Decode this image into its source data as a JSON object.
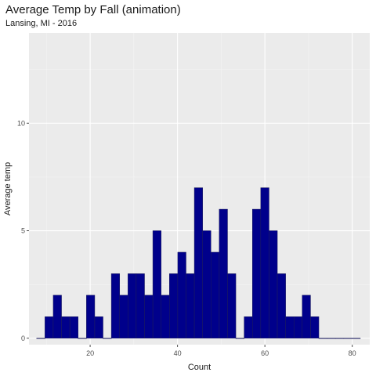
{
  "chart_data": {
    "type": "bar",
    "title": "Average Temp by Fall (animation)",
    "subtitle": "Lansing, MI - 2016",
    "xlabel": "Count",
    "ylabel": "Average temp",
    "xlim": [
      6,
      84
    ],
    "ylim": [
      -0.3,
      14.2
    ],
    "xticks": [
      20,
      40,
      60,
      80
    ],
    "yticks": [
      0,
      5,
      10
    ],
    "bin_width": 1.9,
    "bins": [
      {
        "x": 8.7,
        "count": 0
      },
      {
        "x": 10.6,
        "count": 1
      },
      {
        "x": 12.5,
        "count": 2
      },
      {
        "x": 14.4,
        "count": 1
      },
      {
        "x": 16.3,
        "count": 1
      },
      {
        "x": 18.2,
        "count": 0
      },
      {
        "x": 20.1,
        "count": 2
      },
      {
        "x": 22.0,
        "count": 1
      },
      {
        "x": 23.9,
        "count": 0
      },
      {
        "x": 25.8,
        "count": 3
      },
      {
        "x": 27.7,
        "count": 2
      },
      {
        "x": 29.6,
        "count": 3
      },
      {
        "x": 31.5,
        "count": 3
      },
      {
        "x": 33.4,
        "count": 2
      },
      {
        "x": 35.3,
        "count": 5
      },
      {
        "x": 37.2,
        "count": 2
      },
      {
        "x": 39.1,
        "count": 3
      },
      {
        "x": 41.0,
        "count": 4
      },
      {
        "x": 42.9,
        "count": 3
      },
      {
        "x": 44.8,
        "count": 7
      },
      {
        "x": 46.7,
        "count": 5
      },
      {
        "x": 48.6,
        "count": 4
      },
      {
        "x": 50.5,
        "count": 6
      },
      {
        "x": 52.4,
        "count": 3
      },
      {
        "x": 54.3,
        "count": 0
      },
      {
        "x": 56.2,
        "count": 1
      },
      {
        "x": 58.1,
        "count": 6
      },
      {
        "x": 60.0,
        "count": 7
      },
      {
        "x": 61.9,
        "count": 5
      },
      {
        "x": 63.8,
        "count": 3
      },
      {
        "x": 65.7,
        "count": 1
      },
      {
        "x": 67.6,
        "count": 1
      },
      {
        "x": 69.5,
        "count": 2
      },
      {
        "x": 71.4,
        "count": 1
      },
      {
        "x": 73.3,
        "count": 0
      },
      {
        "x": 75.2,
        "count": 0
      },
      {
        "x": 77.1,
        "count": 0
      },
      {
        "x": 79.0,
        "count": 0
      },
      {
        "x": 80.9,
        "count": 0
      }
    ],
    "colors": {
      "panel": "#ebebeb",
      "grid_major": "#ffffff",
      "grid_minor": "#f4f4f4",
      "bar_fill": "#00008b",
      "bar_outline": "#1e1e5a",
      "tick": "#4d4d4d"
    },
    "grid": true,
    "legend": "none"
  }
}
